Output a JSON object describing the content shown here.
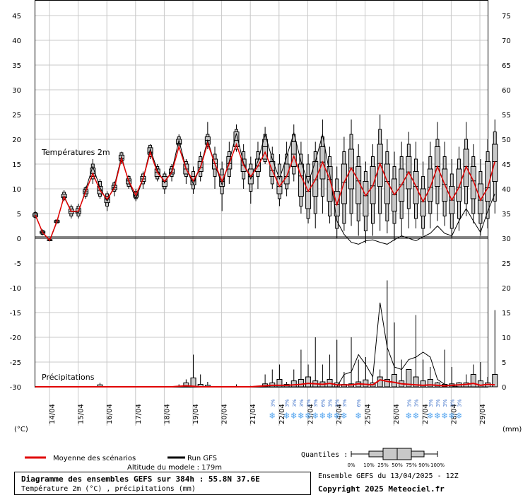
{
  "chart_data": {
    "type": "line",
    "title": "Diagramme des ensembles GEFS sur 384h : 55.8N 37.6E",
    "subtitle": "Température 2m (°C) , précipitations (mm)",
    "ensemble_label": "Ensemble GEFS du 13/04/2025 - 12Z",
    "copyright": "Copyright 2025 Meteociel.fr",
    "altitude_label": "Altitude du modele : 179m",
    "temp_label": "Températures 2m",
    "precip_label": "Précipitations",
    "left_unit": "(°C)",
    "right_unit": "(mm)",
    "quantiles_label": "Quantiles :",
    "quantile_ticks": [
      "0%",
      "10%",
      "25%",
      "50%",
      "75%",
      "90%",
      "100%"
    ],
    "legend": [
      "Moyenne des scénarios",
      "Run GFS"
    ],
    "left_axis": {
      "ylim": [
        -30,
        45
      ],
      "ticks": [
        45,
        40,
        35,
        30,
        25,
        20,
        15,
        10,
        5,
        0,
        -5,
        -10,
        -15,
        -20,
        -25,
        -30
      ]
    },
    "right_axis": {
      "ticks": [
        75,
        70,
        65,
        60,
        55,
        50,
        45,
        40,
        35,
        30,
        25,
        20,
        15,
        10,
        5,
        0
      ]
    },
    "dates": [
      "14/04",
      "15/04",
      "16/04",
      "17/04",
      "18/04",
      "19/04",
      "20/04",
      "21/04",
      "22/04",
      "23/04",
      "24/04",
      "25/04",
      "26/04",
      "27/04",
      "28/04",
      "29/04"
    ],
    "x_start_hours": 0,
    "step_hours": 6,
    "temperature": {
      "mean": [
        4.7,
        1.2,
        -0.4,
        3.4,
        8.4,
        5.4,
        5.5,
        9.4,
        13.1,
        9.7,
        7.9,
        10.2,
        16.1,
        11.6,
        8.7,
        12.0,
        17.4,
        13.3,
        11.5,
        13.3,
        18.5,
        14.0,
        11.6,
        14.3,
        19.2,
        15.1,
        11.5,
        15.1,
        19.0,
        14.8,
        12.5,
        14.6,
        17.4,
        13.7,
        10.5,
        12.5,
        16.6,
        12.6,
        9.5,
        11.8,
        15.4,
        11.9,
        6.8,
        11.3,
        14.2,
        11.6,
        8.6,
        10.6,
        15.1,
        11.5,
        8.8,
        10.8,
        13.4,
        10.5,
        7.4,
        10.3,
        14.5,
        10.9,
        7.7,
        10.3,
        14.5,
        11.6,
        7.7,
        10.2,
        15.5
      ],
      "gfs": [
        4.7,
        1.2,
        -0.5,
        3.3,
        8.5,
        5.5,
        5.2,
        9.8,
        14.5,
        10.3,
        7.5,
        10.6,
        16.5,
        11.4,
        8.0,
        12.0,
        18.0,
        13.8,
        11.2,
        13.6,
        19.8,
        14.0,
        11.0,
        14.5,
        19.8,
        15.0,
        10.8,
        15.5,
        21.2,
        15.2,
        12.0,
        15.6,
        21.0,
        16.0,
        12.0,
        16.5,
        21.3,
        15.5,
        11.2,
        15.5,
        21.0,
        13.0,
        3.5,
        0.8,
        -0.8,
        -1.2,
        -0.5,
        -0.3,
        -0.8,
        -1.2,
        -0.3,
        0.5,
        0.0,
        -0.5,
        0.3,
        1.0,
        2.5,
        1.0,
        0.5,
        3.5,
        6.0,
        3.5,
        1.2,
        5.5,
        9.0
      ],
      "box_min": [
        4.0,
        0.6,
        -0.6,
        3.0,
        7.5,
        4.0,
        4.0,
        8.0,
        11.0,
        8.0,
        5.5,
        8.5,
        15.0,
        10.0,
        7.5,
        10.0,
        16.0,
        11.5,
        9.0,
        11.5,
        18.5,
        11.0,
        9.0,
        11.5,
        18.0,
        10.0,
        5.5,
        11.0,
        17.5,
        10.0,
        7.0,
        10.0,
        15.0,
        10.0,
        6.5,
        8.5,
        11.5,
        5.0,
        3.0,
        2.0,
        5.0,
        3.0,
        0.0,
        1.5,
        2.5,
        0.5,
        -1.0,
        0.5,
        1.5,
        1.0,
        -0.5,
        0.5,
        2.0,
        2.0,
        0.5,
        2.0,
        3.5,
        2.5,
        0.0,
        1.5,
        4.5,
        3.0,
        0.5,
        2.0,
        5.0
      ],
      "box_p10": [
        4.2,
        0.8,
        -0.5,
        3.1,
        7.8,
        4.5,
        4.5,
        8.5,
        12.0,
        8.5,
        6.5,
        9.5,
        15.5,
        10.5,
        8.0,
        11.0,
        16.5,
        12.0,
        10.0,
        12.5,
        18.7,
        12.5,
        10.0,
        12.5,
        18.5,
        12.5,
        9.0,
        12.5,
        18.0,
        12.0,
        9.5,
        12.5,
        15.5,
        11.0,
        8.0,
        10.0,
        13.0,
        6.5,
        4.0,
        5.0,
        8.5,
        4.5,
        2.0,
        3.0,
        5.0,
        3.5,
        1.5,
        3.0,
        5.0,
        3.5,
        3.0,
        4.0,
        6.0,
        4.0,
        2.0,
        5.0,
        7.0,
        4.5,
        2.0,
        4.0,
        7.0,
        5.0,
        3.0,
        4.0,
        7.5
      ],
      "box_q1": [
        4.4,
        1.0,
        -0.4,
        3.2,
        8.2,
        5.0,
        5.0,
        9.0,
        12.5,
        9.0,
        7.2,
        9.8,
        15.8,
        11.0,
        8.3,
        11.5,
        17.0,
        12.5,
        10.5,
        13.0,
        19.0,
        13.0,
        10.8,
        13.5,
        19.0,
        14.0,
        10.5,
        14.0,
        18.5,
        13.5,
        11.0,
        13.5,
        16.0,
        12.5,
        9.0,
        11.0,
        14.5,
        8.5,
        6.0,
        8.5,
        12.0,
        7.5,
        4.5,
        7.0,
        10.0,
        7.0,
        4.5,
        7.0,
        10.5,
        7.0,
        5.5,
        7.5,
        10.0,
        7.0,
        4.5,
        7.5,
        10.5,
        7.5,
        5.0,
        7.5,
        10.5,
        8.0,
        5.0,
        7.5,
        11.5
      ],
      "box_median": [
        4.7,
        1.2,
        -0.4,
        3.4,
        8.4,
        5.4,
        5.5,
        9.4,
        13.1,
        9.7,
        7.9,
        10.2,
        16.1,
        11.6,
        8.7,
        12.0,
        17.4,
        13.3,
        11.5,
        13.3,
        19.2,
        14.0,
        11.6,
        14.3,
        19.8,
        15.1,
        11.5,
        15.1,
        19.8,
        14.8,
        12.5,
        14.6,
        18.5,
        13.7,
        10.5,
        12.5,
        17.0,
        12.6,
        9.5,
        11.8,
        15.4,
        11.9,
        6.8,
        11.3,
        14.2,
        11.6,
        8.6,
        10.6,
        15.1,
        11.5,
        8.8,
        10.8,
        13.4,
        10.5,
        7.4,
        10.3,
        14.5,
        10.9,
        7.7,
        10.3,
        14.5,
        11.6,
        7.7,
        10.2,
        15.5
      ],
      "box_q3": [
        5.0,
        1.4,
        -0.3,
        3.6,
        8.9,
        5.9,
        6.0,
        9.8,
        14.2,
        10.5,
        8.5,
        10.7,
        16.8,
        12.0,
        9.2,
        12.5,
        18.3,
        14.0,
        12.5,
        14.0,
        20.0,
        15.0,
        12.5,
        15.5,
        20.5,
        16.0,
        12.8,
        16.5,
        21.5,
        16.0,
        14.0,
        16.0,
        20.0,
        15.5,
        12.5,
        15.0,
        19.5,
        15.0,
        12.5,
        15.5,
        18.5,
        14.5,
        9.5,
        15.0,
        18.0,
        14.5,
        11.5,
        14.5,
        19.0,
        15.0,
        12.0,
        14.0,
        16.5,
        13.5,
        10.0,
        14.0,
        18.5,
        14.0,
        10.5,
        14.0,
        18.0,
        14.5,
        11.0,
        15.5,
        19.0
      ],
      "box_p90": [
        5.2,
        1.6,
        -0.2,
        3.7,
        9.3,
        6.4,
        6.5,
        10.2,
        15.0,
        11.5,
        9.0,
        11.2,
        17.3,
        12.5,
        9.5,
        13.0,
        18.8,
        14.5,
        13.0,
        14.5,
        20.5,
        15.5,
        13.5,
        16.5,
        21.0,
        17.0,
        14.0,
        17.5,
        22.0,
        17.5,
        15.0,
        17.5,
        21.0,
        17.0,
        15.0,
        17.0,
        21.0,
        17.0,
        15.0,
        17.5,
        20.5,
        16.5,
        12.0,
        17.5,
        21.0,
        16.5,
        13.5,
        16.5,
        22.0,
        17.5,
        14.5,
        16.5,
        19.0,
        16.0,
        12.5,
        16.5,
        20.0,
        16.5,
        13.0,
        16.0,
        20.0,
        16.5,
        13.5,
        17.5,
        21.5
      ],
      "box_max": [
        5.5,
        1.8,
        0.0,
        3.8,
        9.7,
        6.8,
        7.0,
        10.5,
        16.0,
        12.0,
        9.5,
        11.5,
        17.5,
        12.8,
        10.0,
        13.5,
        19.0,
        15.0,
        13.5,
        15.0,
        21.0,
        16.0,
        14.5,
        17.5,
        23.5,
        18.5,
        15.5,
        19.5,
        23.0,
        19.0,
        16.5,
        19.5,
        22.5,
        18.5,
        17.0,
        19.5,
        23.0,
        19.5,
        17.0,
        19.5,
        24.0,
        18.5,
        14.5,
        20.5,
        24.0,
        19.0,
        15.5,
        19.0,
        25.0,
        20.0,
        17.5,
        19.5,
        21.5,
        19.5,
        15.5,
        19.5,
        23.5,
        19.5,
        16.0,
        18.5,
        23.5,
        19.0,
        16.0,
        20.0,
        24.0
      ]
    },
    "precipitation": {
      "mean": [
        0,
        0,
        0,
        0,
        0,
        0,
        0,
        0,
        0,
        0,
        0,
        0,
        0,
        0,
        0,
        0,
        0,
        0,
        0,
        0,
        0.1,
        0.2,
        0.1,
        0,
        0,
        0,
        0,
        0,
        0,
        0,
        0,
        0.1,
        0.2,
        0.3,
        0.3,
        0.3,
        0.4,
        0.5,
        0.7,
        0.6,
        0.5,
        0.7,
        0.4,
        0.4,
        0.4,
        0.6,
        0.5,
        0.4,
        1.4,
        1.1,
        0.9,
        0.6,
        0.5,
        0.4,
        0.3,
        0.4,
        0.3,
        0.2,
        0.3,
        0.4,
        0.5,
        0.7,
        0.3,
        0.5,
        0.4
      ],
      "gfs": [
        0,
        0,
        0,
        0,
        0,
        0,
        0,
        0,
        0,
        0,
        0,
        0,
        0,
        0,
        0,
        0,
        0,
        0,
        0,
        0,
        0,
        0,
        0,
        0,
        0,
        0,
        0,
        0,
        0,
        0,
        0,
        0,
        0,
        0,
        0,
        0,
        0,
        0,
        0,
        0,
        0,
        0,
        0,
        2.5,
        3.0,
        6.5,
        4.5,
        2.0,
        17.0,
        8.0,
        4.0,
        3.5,
        5.5,
        6.0,
        7.0,
        6.0,
        1.5,
        0.5,
        0.2,
        0,
        0,
        0,
        0,
        0,
        0
      ],
      "box_q3": [
        0,
        0,
        0,
        0,
        0,
        0,
        0,
        0,
        0,
        0.4,
        0,
        0,
        0,
        0,
        0,
        0,
        0,
        0,
        0,
        0,
        0,
        0.8,
        1.8,
        0.5,
        0.3,
        0,
        0,
        0,
        0,
        0,
        0,
        0,
        0.6,
        0.8,
        1.5,
        0.5,
        1.2,
        1.5,
        2.0,
        1.2,
        1.0,
        1.5,
        0.8,
        0.5,
        0.6,
        1.0,
        1.4,
        0.8,
        2.0,
        1.5,
        2.5,
        1.2,
        3.5,
        2.0,
        1.2,
        1.5,
        0.8,
        0.5,
        0.6,
        0.8,
        0.8,
        2.5,
        1.2,
        0.8,
        2.5
      ],
      "box_max": [
        0,
        0,
        0,
        0,
        0,
        0,
        0,
        0,
        0,
        0.8,
        0,
        0,
        0,
        0,
        0,
        0,
        0,
        0,
        0,
        0,
        0.5,
        1.5,
        6.5,
        2.5,
        1.0,
        0,
        0,
        0,
        0.5,
        0,
        0.2,
        0,
        2.5,
        3.5,
        4.5,
        1.0,
        3.5,
        7.5,
        4.5,
        10.0,
        4.5,
        6.5,
        9.5,
        3.0,
        10.0,
        5.5,
        6.0,
        2.0,
        3.5,
        21.5,
        13.0,
        5.5,
        3.5,
        14.5,
        5.5,
        4.0,
        1.0,
        7.5,
        4.0,
        1.0,
        2.5,
        4.5,
        5.0,
        2.0,
        15.5
      ]
    },
    "snow_markers": [
      "3%",
      "3%",
      "3%",
      "3%",
      "3%",
      "3%",
      "6%",
      "3%",
      "3%",
      "3%",
      "6%",
      "3%",
      "3%",
      "3%",
      "3%",
      "3%",
      "3%",
      "3%"
    ],
    "snow_marker_steps": [
      33,
      35,
      36,
      37,
      38,
      39,
      40,
      41,
      42,
      43,
      45,
      52,
      53,
      55,
      56,
      57,
      58,
      59
    ]
  }
}
